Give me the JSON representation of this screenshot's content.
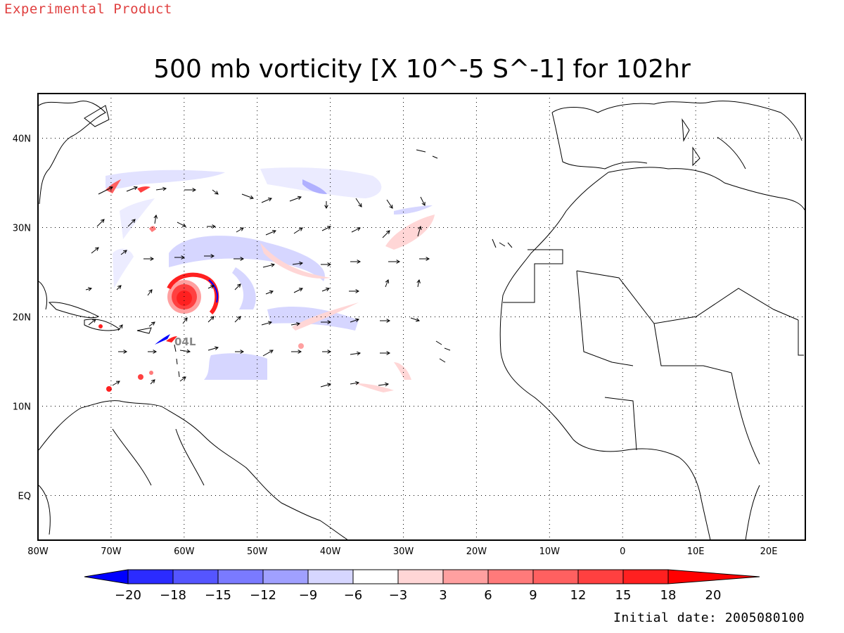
{
  "header_note": "Experimental Product",
  "title": "500 mb vorticity [X 10^-5 S^-1] for 102hr",
  "initial_date_text": "Initial date: 2005080100",
  "storm_label": "04L",
  "axes": {
    "lon_range": [
      -80,
      25
    ],
    "lat_range": [
      -5,
      45
    ],
    "lon_ticks": [
      "80W",
      "70W",
      "60W",
      "50W",
      "40W",
      "30W",
      "20W",
      "10W",
      "0",
      "10E",
      "20E"
    ],
    "lat_ticks": [
      "40N",
      "30N",
      "20N",
      "10N",
      "EQ"
    ]
  },
  "colorbar": {
    "labels": [
      "-20",
      "-18",
      "-15",
      "-12",
      "-9",
      "-6",
      "-3",
      "3",
      "6",
      "9",
      "12",
      "15",
      "18",
      "20"
    ],
    "colors": [
      "#0000ff",
      "#2b2bff",
      "#5555ff",
      "#7a7aff",
      "#a0a0ff",
      "#d6d6ff",
      "#ffffff",
      "#ffd6d6",
      "#ffa0a0",
      "#ff7a7a",
      "#ff6060",
      "#ff4040",
      "#ff2020",
      "#ff0000"
    ]
  }
}
